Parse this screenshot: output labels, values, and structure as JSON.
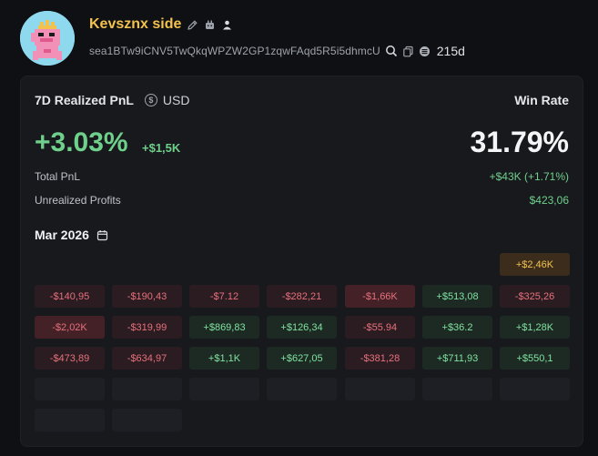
{
  "profile": {
    "name": "Kevsznx side",
    "address": "sea1BTw9iCNV5TwQkqWPZW2GP1zqwFAqd5R5i5dhmcU",
    "age": "215d",
    "icons": [
      "edit-icon",
      "bot-icon",
      "person-icon",
      "search-icon",
      "copy-icon",
      "chain-icon"
    ]
  },
  "stats": {
    "pnl_label": "7D Realized PnL",
    "currency": "USD",
    "win_rate_label": "Win Rate",
    "pnl_percent": "+3.03%",
    "pnl_amount": "+$1,5K",
    "win_rate": "31.79%",
    "total_pnl_label": "Total PnL",
    "total_pnl_value": "+$43K (+1.71%)",
    "unrealized_label": "Unrealized Profits",
    "unrealized_value": "$423,06"
  },
  "calendar": {
    "month": "Mar 2026",
    "cells": [
      {
        "text": "+$2,46K",
        "kind": "gold"
      },
      {
        "text": "-$140,95",
        "kind": "neg"
      },
      {
        "text": "-$190,43",
        "kind": "neg"
      },
      {
        "text": "-$7.12",
        "kind": "neg"
      },
      {
        "text": "-$282,21",
        "kind": "neg"
      },
      {
        "text": "-$1,66K",
        "kind": "neg-strong"
      },
      {
        "text": "+$513,08",
        "kind": "pos"
      },
      {
        "text": "-$325,26",
        "kind": "neg"
      },
      {
        "text": "-$2,02K",
        "kind": "neg-strong"
      },
      {
        "text": "-$319,99",
        "kind": "neg"
      },
      {
        "text": "+$869,83",
        "kind": "pos"
      },
      {
        "text": "+$126,34",
        "kind": "pos"
      },
      {
        "text": "-$55.94",
        "kind": "neg"
      },
      {
        "text": "+$36.2",
        "kind": "pos"
      },
      {
        "text": "+$1,28K",
        "kind": "pos"
      },
      {
        "text": "-$473,89",
        "kind": "neg"
      },
      {
        "text": "-$634,97",
        "kind": "neg"
      },
      {
        "text": "+$1,1K",
        "kind": "pos"
      },
      {
        "text": "+$627,05",
        "kind": "pos"
      },
      {
        "text": "-$381,28",
        "kind": "neg"
      },
      {
        "text": "+$711,93",
        "kind": "pos"
      },
      {
        "text": "+$550,1",
        "kind": "pos"
      }
    ]
  },
  "colors": {
    "positive": "#6fd08c",
    "negative": "#e7707b",
    "gold": "#f2c24c",
    "background": "#0f1013",
    "card": "#18191d"
  }
}
